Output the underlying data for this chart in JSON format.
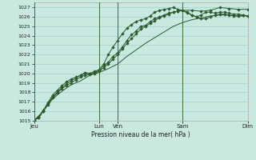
{
  "xlabel": "Pression niveau de la mer( hPa )",
  "bg_color": "#c8e8e0",
  "plot_bg_color": "#c8e8e0",
  "grid_color": "#99cccc",
  "line_color": "#2d5a2d",
  "ylim": [
    1015,
    1027.5
  ],
  "yticks": [
    1015,
    1016,
    1017,
    1018,
    1019,
    1020,
    1021,
    1022,
    1023,
    1024,
    1025,
    1026,
    1027
  ],
  "xtick_labels": [
    "Jeu",
    "Lun",
    "Ven",
    "Sam",
    "Dim"
  ],
  "xtick_positions": [
    0,
    7,
    9,
    16,
    23
  ],
  "day_lines_x": [
    0,
    7,
    9,
    16,
    23
  ],
  "xlim": [
    0,
    23
  ],
  "series1_x": [
    0,
    1,
    2,
    3,
    4,
    5,
    6,
    7,
    8,
    9,
    10,
    11,
    12,
    13,
    14,
    15,
    16,
    17,
    18,
    19,
    20,
    21,
    22,
    23
  ],
  "series1_y": [
    1015.0,
    1016.0,
    1017.3,
    1018.1,
    1018.8,
    1019.2,
    1019.8,
    1020.1,
    1020.5,
    1021.0,
    1021.8,
    1022.5,
    1023.2,
    1023.8,
    1024.4,
    1025.0,
    1025.4,
    1025.7,
    1025.9,
    1026.1,
    1026.2,
    1026.2,
    1026.1,
    1026.1
  ],
  "series2_x": [
    0,
    0.5,
    1,
    1.5,
    2,
    2.5,
    3,
    3.5,
    4,
    4.5,
    5,
    5.5,
    6,
    6.5,
    7,
    7.5,
    8,
    8.5,
    9,
    9.5,
    10,
    10.5,
    11,
    11.5,
    12,
    12.5,
    13,
    13.5,
    14,
    14.5,
    15,
    15.5,
    16,
    16.5,
    17,
    17.5,
    18,
    18.5,
    19,
    19.5,
    20,
    20.5,
    21,
    21.5,
    22,
    22.5,
    23
  ],
  "series2_y": [
    1015.0,
    1015.3,
    1016.0,
    1016.8,
    1017.5,
    1018.0,
    1018.5,
    1018.9,
    1019.2,
    1019.5,
    1019.8,
    1020.0,
    1020.0,
    1020.1,
    1020.3,
    1020.8,
    1021.2,
    1021.8,
    1022.2,
    1022.8,
    1023.5,
    1024.1,
    1024.5,
    1025.0,
    1025.1,
    1025.5,
    1025.8,
    1026.0,
    1026.2,
    1026.4,
    1026.5,
    1026.6,
    1026.7,
    1026.5,
    1026.2,
    1026.0,
    1025.8,
    1025.8,
    1026.0,
    1026.2,
    1026.3,
    1026.3,
    1026.2,
    1026.1,
    1026.1,
    1026.15,
    1026.1
  ],
  "series3_x": [
    0,
    0.5,
    1,
    1.5,
    2,
    2.5,
    3,
    3.5,
    4,
    4.5,
    5,
    5.5,
    6,
    6.5,
    7,
    7.5,
    8,
    8.5,
    9,
    9.5,
    10,
    10.5,
    11,
    11.5,
    12,
    12.5,
    13,
    13.5,
    14,
    14.5,
    15,
    15.5,
    16,
    16.5,
    17,
    17.5,
    18,
    18.5,
    19,
    19.5,
    20,
    20.5,
    21,
    21.5,
    22,
    22.5,
    23
  ],
  "series3_y": [
    1015.0,
    1015.4,
    1016.1,
    1016.9,
    1017.7,
    1018.2,
    1018.7,
    1019.1,
    1019.4,
    1019.6,
    1019.8,
    1020.1,
    1020.0,
    1020.2,
    1020.4,
    1021.0,
    1022.0,
    1022.8,
    1023.5,
    1024.2,
    1024.8,
    1025.2,
    1025.5,
    1025.7,
    1025.8,
    1026.1,
    1026.5,
    1026.7,
    1026.8,
    1026.9,
    1027.0,
    1026.8,
    1026.7,
    1026.4,
    1026.2,
    1026.0,
    1026.2,
    1026.5,
    1026.5,
    1026.4,
    1026.5,
    1026.5,
    1026.4,
    1026.3,
    1026.3,
    1026.2,
    1026.1
  ],
  "series4_x": [
    0,
    0.5,
    1,
    1.5,
    2,
    2.5,
    3,
    3.5,
    4,
    4.5,
    5,
    5.5,
    6,
    6.5,
    7,
    7.5,
    8,
    8.5,
    9,
    9.5,
    10,
    10.5,
    11,
    11.5,
    12,
    12.5,
    13,
    13.5,
    14,
    14.5,
    15,
    15.5,
    16,
    17,
    18,
    19,
    20,
    21,
    22,
    23
  ],
  "series4_y": [
    1015.0,
    1015.3,
    1016.0,
    1016.7,
    1017.4,
    1017.9,
    1018.4,
    1018.7,
    1019.0,
    1019.3,
    1019.6,
    1019.8,
    1019.9,
    1020.0,
    1020.2,
    1020.6,
    1021.0,
    1021.5,
    1022.0,
    1022.6,
    1023.2,
    1023.7,
    1024.2,
    1024.7,
    1025.0,
    1025.3,
    1025.6,
    1025.9,
    1026.1,
    1026.3,
    1026.5,
    1026.6,
    1026.7,
    1026.7,
    1026.6,
    1026.7,
    1027.0,
    1026.9,
    1026.8,
    1026.8
  ]
}
